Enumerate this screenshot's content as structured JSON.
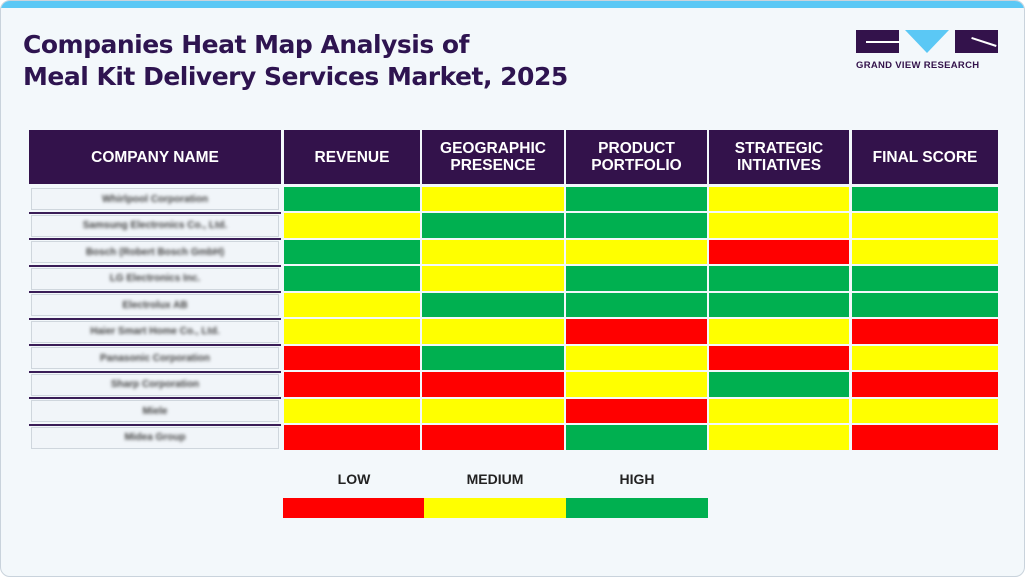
{
  "title_line1": "Companies Heat Map Analysis of",
  "title_line2": "Meal Kit Delivery Services Market, 2025",
  "logo": {
    "text": "GRAND VIEW RESEARCH"
  },
  "colors": {
    "low": "#ff0000",
    "medium": "#ffff00",
    "high": "#00b050",
    "header": "#33124b"
  },
  "chart_data": {
    "type": "heatmap",
    "columns": [
      "COMPANY NAME",
      "REVENUE",
      "GEOGRAPHIC PRESENCE",
      "PRODUCT PORTFOLIO",
      "STRATEGIC INTIATIVES",
      "FINAL SCORE"
    ],
    "companies": [
      "Whirlpool Corporation",
      "Samsung Electronics Co., Ltd.",
      "Bosch (Robert Bosch GmbH)",
      "LG Electronics Inc.",
      "Electrolux AB",
      "Haier Smart Home Co., Ltd.",
      "Panasonic Corporation",
      "Sharp Corporation",
      "Miele",
      "Midea Group"
    ],
    "levels": [
      [
        "HIGH",
        "MEDIUM",
        "HIGH",
        "MEDIUM",
        "HIGH"
      ],
      [
        "MEDIUM",
        "HIGH",
        "HIGH",
        "MEDIUM",
        "MEDIUM"
      ],
      [
        "HIGH",
        "MEDIUM",
        "MEDIUM",
        "LOW",
        "MEDIUM"
      ],
      [
        "HIGH",
        "MEDIUM",
        "HIGH",
        "HIGH",
        "HIGH"
      ],
      [
        "MEDIUM",
        "HIGH",
        "HIGH",
        "HIGH",
        "HIGH"
      ],
      [
        "MEDIUM",
        "MEDIUM",
        "LOW",
        "MEDIUM",
        "LOW"
      ],
      [
        "LOW",
        "HIGH",
        "MEDIUM",
        "LOW",
        "MEDIUM"
      ],
      [
        "LOW",
        "LOW",
        "MEDIUM",
        "HIGH",
        "LOW"
      ],
      [
        "MEDIUM",
        "MEDIUM",
        "LOW",
        "MEDIUM",
        "MEDIUM"
      ],
      [
        "LOW",
        "LOW",
        "HIGH",
        "MEDIUM",
        "LOW"
      ]
    ],
    "legend": [
      "LOW",
      "MEDIUM",
      "HIGH"
    ]
  }
}
